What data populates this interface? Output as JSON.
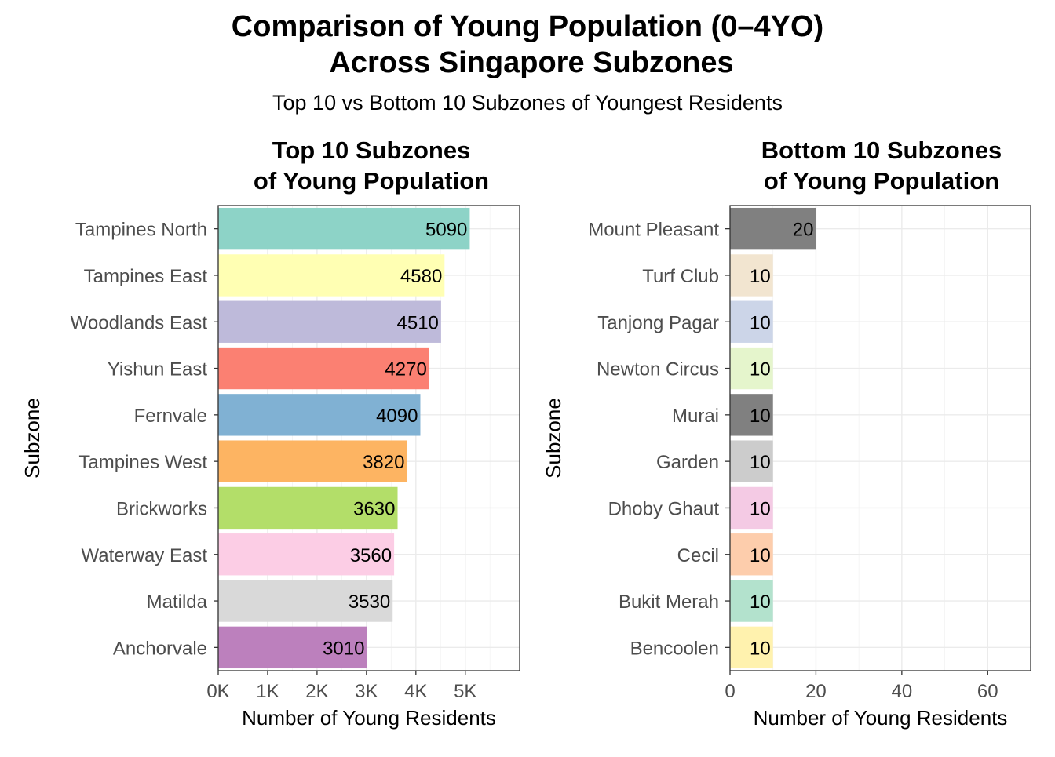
{
  "title_line1": "Comparison of Young Population (0–4YO)",
  "title_line2": "Across Singapore Subzones",
  "subtitle": "Top 10 vs Bottom 10 Subzones of Youngest Residents",
  "chart_data": [
    {
      "type": "bar",
      "orientation": "horizontal",
      "title_lines": [
        "Top 10 Subzones",
        "of Young Population"
      ],
      "xlabel": "Number of Young Residents",
      "ylabel": "Subzone",
      "xlim": [
        0,
        6100
      ],
      "x_ticks": [
        0,
        1000,
        2000,
        3000,
        4000,
        5000
      ],
      "x_tick_labels": [
        "0K",
        "1K",
        "2K",
        "3K",
        "4K",
        "5K"
      ],
      "grid": true,
      "categories": [
        "Tampines North",
        "Tampines East",
        "Woodlands East",
        "Yishun East",
        "Fernvale",
        "Tampines West",
        "Brickworks",
        "Waterway East",
        "Matilda",
        "Anchorvale"
      ],
      "values": [
        5090,
        4580,
        4510,
        4270,
        4090,
        3820,
        3630,
        3560,
        3530,
        3010
      ],
      "data_labels": [
        "5090",
        "4580",
        "4510",
        "4270",
        "4090",
        "3820",
        "3630",
        "3560",
        "3530",
        "3010"
      ],
      "colors": [
        "#8dd3c7",
        "#ffffb3",
        "#bebada",
        "#fb8072",
        "#80b1d3",
        "#fdb462",
        "#b3de69",
        "#fccde5",
        "#d9d9d9",
        "#bc80bd"
      ]
    },
    {
      "type": "bar",
      "orientation": "horizontal",
      "title_lines": [
        "Bottom 10 Subzones",
        "of Young Population"
      ],
      "xlabel": "Number of Young Residents",
      "ylabel": "Subzone",
      "xlim": [
        0,
        70
      ],
      "x_ticks": [
        0,
        20,
        40,
        60
      ],
      "x_tick_labels": [
        "0",
        "20",
        "40",
        "60"
      ],
      "grid": true,
      "categories": [
        "Mount Pleasant",
        "Turf Club",
        "Tanjong Pagar",
        "Newton Circus",
        "Murai",
        "Garden",
        "Dhoby Ghaut",
        "Cecil",
        "Bukit Merah",
        "Bencoolen"
      ],
      "values": [
        20,
        10,
        10,
        10,
        10,
        10,
        10,
        10,
        10,
        10
      ],
      "data_labels": [
        "20",
        "10",
        "10",
        "10",
        "10",
        "10",
        "10",
        "10",
        "10",
        "10"
      ],
      "colors": [
        "#808080",
        "#f2e5d0",
        "#ccd5e8",
        "#e5f5cc",
        "#808080",
        "#cccccc",
        "#f4cae4",
        "#fdcdac",
        "#b3e2cd",
        "#fff2ae"
      ]
    }
  ]
}
